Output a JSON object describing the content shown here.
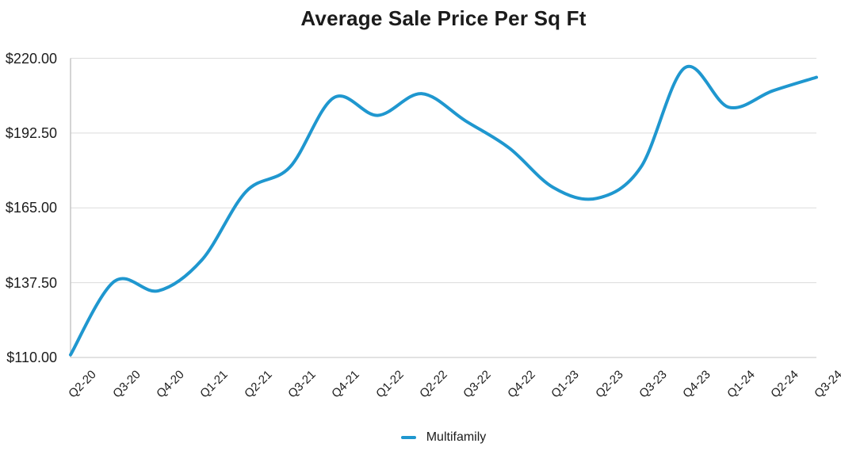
{
  "chart_data": {
    "type": "line",
    "title": "Average Sale Price Per Sq Ft",
    "categories": [
      "Q2-20",
      "Q3-20",
      "Q4-20",
      "Q1-21",
      "Q2-21",
      "Q3-21",
      "Q4-21",
      "Q1-22",
      "Q2-22",
      "Q3-22",
      "Q4-22",
      "Q1-23",
      "Q2-23",
      "Q3-23",
      "Q4-23",
      "Q1-24",
      "Q2-24",
      "Q3-24"
    ],
    "series": [
      {
        "name": "Multifamily",
        "color": "#1F97CF",
        "values": [
          111,
          138,
          134.5,
          146,
          171,
          180,
          205.5,
          199,
          207,
          197,
          187,
          172.5,
          168.5,
          180,
          216.5,
          202,
          208,
          213
        ]
      }
    ],
    "xlabel": "",
    "ylabel": "",
    "ylim": [
      110,
      220
    ],
    "yticks": [
      {
        "value": 110,
        "label": "$110.00"
      },
      {
        "value": 137.5,
        "label": "$137.50"
      },
      {
        "value": 165,
        "label": "$165.00"
      },
      {
        "value": 192.5,
        "label": "$192.50"
      },
      {
        "value": 220,
        "label": "$220.00"
      }
    ],
    "grid": "horizontal",
    "smooth": true,
    "legend_position": "bottom",
    "colors": {
      "line": "#1F97CF",
      "gridline": "#dcdcdc",
      "axis_line": "#c5c5c5",
      "text": "#1c1c1c"
    }
  }
}
